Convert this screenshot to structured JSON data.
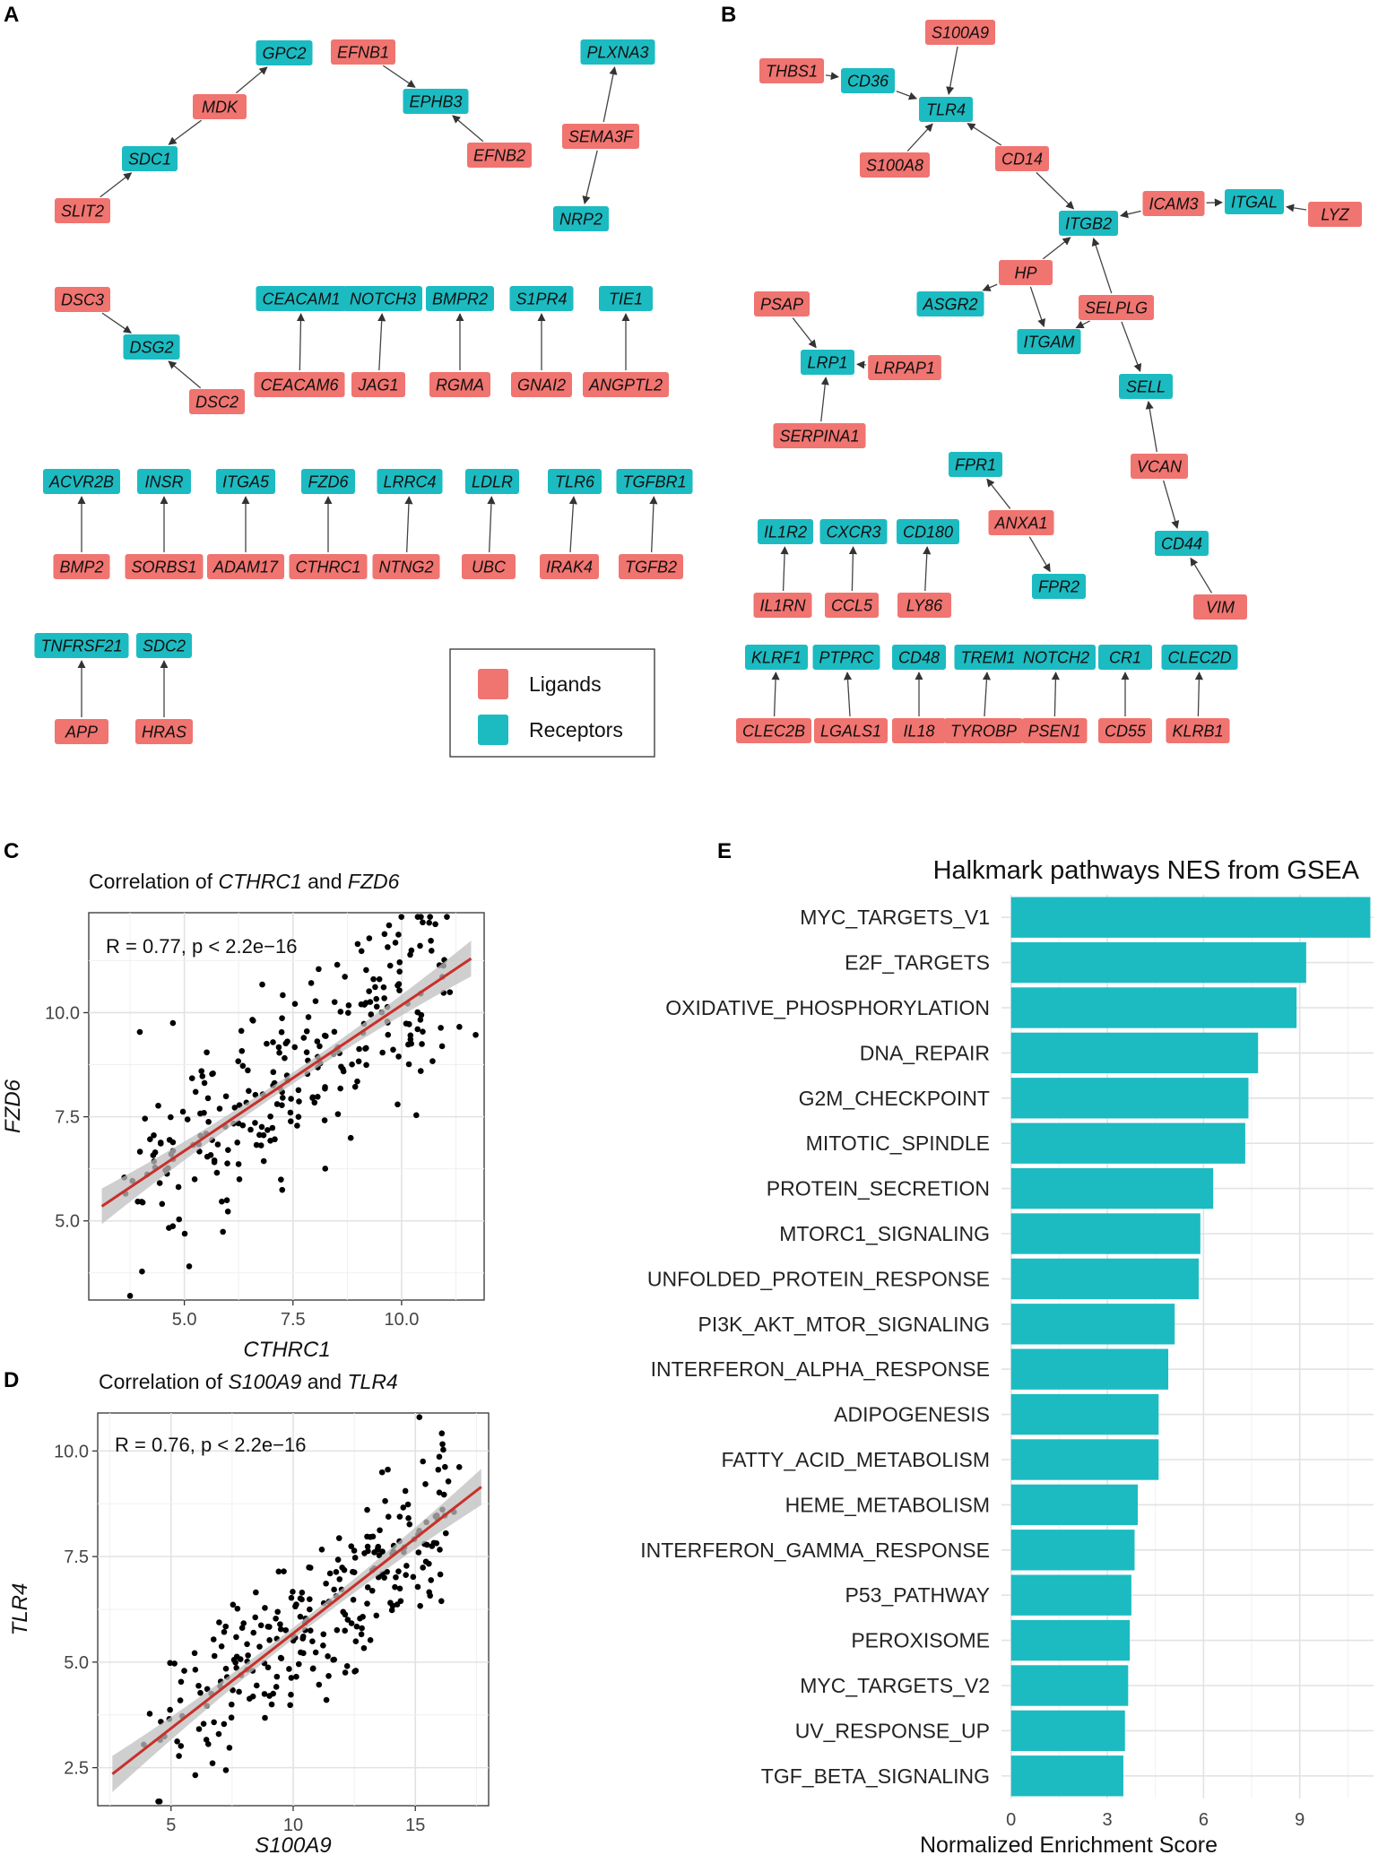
{
  "panels": {
    "A": "A",
    "B": "B",
    "C": "C",
    "D": "D",
    "E": "E"
  },
  "colors": {
    "ligand": "#F07470",
    "receptor": "#1CBBC1",
    "fit": "#C8302A",
    "ribbon": "#BFBFBF",
    "bar": "#1CBBC1"
  },
  "legend": {
    "ligands": "Ligands",
    "receptors": "Receptors"
  },
  "networkA": {
    "nodes": [
      {
        "id": "GPC2",
        "type": "rec"
      },
      {
        "id": "MDK",
        "type": "lig"
      },
      {
        "id": "SDC1",
        "type": "rec"
      },
      {
        "id": "SLIT2",
        "type": "lig"
      },
      {
        "id": "EFNB1",
        "type": "lig"
      },
      {
        "id": "EPHB3",
        "type": "rec"
      },
      {
        "id": "EFNB2",
        "type": "lig"
      },
      {
        "id": "PLXNA3",
        "type": "rec"
      },
      {
        "id": "SEMA3F",
        "type": "lig"
      },
      {
        "id": "NRP2",
        "type": "rec"
      },
      {
        "id": "DSC3",
        "type": "lig"
      },
      {
        "id": "DSG2",
        "type": "rec"
      },
      {
        "id": "DSC2",
        "type": "lig"
      },
      {
        "id": "CEACAM1",
        "type": "rec"
      },
      {
        "id": "CEACAM6",
        "type": "lig"
      },
      {
        "id": "NOTCH3",
        "type": "rec"
      },
      {
        "id": "JAG1",
        "type": "lig"
      },
      {
        "id": "BMPR2",
        "type": "rec"
      },
      {
        "id": "RGMA",
        "type": "lig"
      },
      {
        "id": "S1PR4",
        "type": "rec"
      },
      {
        "id": "GNAI2",
        "type": "lig"
      },
      {
        "id": "TIE1",
        "type": "rec"
      },
      {
        "id": "ANGPTL2",
        "type": "lig"
      },
      {
        "id": "ACVR2B",
        "type": "rec"
      },
      {
        "id": "BMP2",
        "type": "lig"
      },
      {
        "id": "INSR",
        "type": "rec"
      },
      {
        "id": "SORBS1",
        "type": "lig"
      },
      {
        "id": "ITGA5",
        "type": "rec"
      },
      {
        "id": "ADAM17",
        "type": "lig"
      },
      {
        "id": "FZD6",
        "type": "rec"
      },
      {
        "id": "CTHRC1",
        "type": "lig"
      },
      {
        "id": "LRRC4",
        "type": "rec"
      },
      {
        "id": "NTNG2",
        "type": "lig"
      },
      {
        "id": "LDLR",
        "type": "rec"
      },
      {
        "id": "UBC",
        "type": "lig"
      },
      {
        "id": "TLR6",
        "type": "rec"
      },
      {
        "id": "IRAK4",
        "type": "lig"
      },
      {
        "id": "TGFBR1",
        "type": "rec"
      },
      {
        "id": "TGFB2",
        "type": "lig"
      },
      {
        "id": "TNFRSF21",
        "type": "rec"
      },
      {
        "id": "APP",
        "type": "lig"
      },
      {
        "id": "SDC2",
        "type": "rec"
      },
      {
        "id": "HRAS",
        "type": "lig"
      }
    ],
    "edges": [
      [
        "MDK",
        "GPC2"
      ],
      [
        "MDK",
        "SDC1"
      ],
      [
        "SLIT2",
        "SDC1"
      ],
      [
        "EFNB1",
        "EPHB3"
      ],
      [
        "EFNB2",
        "EPHB3"
      ],
      [
        "SEMA3F",
        "PLXNA3"
      ],
      [
        "SEMA3F",
        "NRP2"
      ],
      [
        "DSC3",
        "DSG2"
      ],
      [
        "DSC2",
        "DSG2"
      ],
      [
        "CEACAM6",
        "CEACAM1"
      ],
      [
        "JAG1",
        "NOTCH3"
      ],
      [
        "RGMA",
        "BMPR2"
      ],
      [
        "GNAI2",
        "S1PR4"
      ],
      [
        "ANGPTL2",
        "TIE1"
      ],
      [
        "BMP2",
        "ACVR2B"
      ],
      [
        "SORBS1",
        "INSR"
      ],
      [
        "ADAM17",
        "ITGA5"
      ],
      [
        "CTHRC1",
        "FZD6"
      ],
      [
        "NTNG2",
        "LRRC4"
      ],
      [
        "UBC",
        "LDLR"
      ],
      [
        "IRAK4",
        "TLR6"
      ],
      [
        "TGFB2",
        "TGFBR1"
      ],
      [
        "APP",
        "TNFRSF21"
      ],
      [
        "HRAS",
        "SDC2"
      ]
    ]
  },
  "networkB": {
    "nodes": [
      {
        "id": "S100A9",
        "type": "lig"
      },
      {
        "id": "THBS1",
        "type": "lig"
      },
      {
        "id": "CD36",
        "type": "rec"
      },
      {
        "id": "TLR4",
        "type": "rec"
      },
      {
        "id": "S100A8",
        "type": "lig"
      },
      {
        "id": "CD14",
        "type": "lig"
      },
      {
        "id": "ITGB2",
        "type": "rec"
      },
      {
        "id": "ICAM3",
        "type": "lig"
      },
      {
        "id": "ITGAL",
        "type": "rec"
      },
      {
        "id": "LYZ",
        "type": "lig"
      },
      {
        "id": "HP",
        "type": "lig"
      },
      {
        "id": "ASGR2",
        "type": "rec"
      },
      {
        "id": "SELPLG",
        "type": "lig"
      },
      {
        "id": "ITGAM",
        "type": "rec"
      },
      {
        "id": "PSAP",
        "type": "lig"
      },
      {
        "id": "LRP1",
        "type": "rec"
      },
      {
        "id": "LRPAP1",
        "type": "lig"
      },
      {
        "id": "SERPINA1",
        "type": "lig"
      },
      {
        "id": "SELL",
        "type": "rec"
      },
      {
        "id": "VCAN",
        "type": "lig"
      },
      {
        "id": "FPR1",
        "type": "rec"
      },
      {
        "id": "ANXA1",
        "type": "lig"
      },
      {
        "id": "FPR2",
        "type": "rec"
      },
      {
        "id": "CD44",
        "type": "rec"
      },
      {
        "id": "VIM",
        "type": "lig"
      },
      {
        "id": "IL1R2",
        "type": "rec"
      },
      {
        "id": "IL1RN",
        "type": "lig"
      },
      {
        "id": "CXCR3",
        "type": "rec"
      },
      {
        "id": "CCL5",
        "type": "lig"
      },
      {
        "id": "CD180",
        "type": "rec"
      },
      {
        "id": "LY86",
        "type": "lig"
      },
      {
        "id": "KLRF1",
        "type": "rec"
      },
      {
        "id": "CLEC2B",
        "type": "lig"
      },
      {
        "id": "PTPRC",
        "type": "rec"
      },
      {
        "id": "LGALS1",
        "type": "lig"
      },
      {
        "id": "CD48",
        "type": "rec"
      },
      {
        "id": "IL18",
        "type": "lig"
      },
      {
        "id": "TREM1",
        "type": "rec"
      },
      {
        "id": "TYROBP",
        "type": "lig"
      },
      {
        "id": "NOTCH2",
        "type": "rec"
      },
      {
        "id": "PSEN1",
        "type": "lig"
      },
      {
        "id": "CR1",
        "type": "rec"
      },
      {
        "id": "CD55",
        "type": "lig"
      },
      {
        "id": "CLEC2D",
        "type": "rec"
      },
      {
        "id": "KLRB1",
        "type": "lig"
      }
    ],
    "edges": [
      [
        "S100A9",
        "TLR4"
      ],
      [
        "THBS1",
        "CD36"
      ],
      [
        "CD36",
        "TLR4"
      ],
      [
        "S100A8",
        "TLR4"
      ],
      [
        "CD14",
        "TLR4"
      ],
      [
        "CD14",
        "ITGB2"
      ],
      [
        "ICAM3",
        "ITGAL"
      ],
      [
        "ICAM3",
        "ITGB2"
      ],
      [
        "LYZ",
        "ITGAL"
      ],
      [
        "HP",
        "ITGB2"
      ],
      [
        "HP",
        "ASGR2"
      ],
      [
        "HP",
        "ITGAM"
      ],
      [
        "SELPLG",
        "ITGB2"
      ],
      [
        "SELPLG",
        "ITGAM"
      ],
      [
        "SELPLG",
        "SELL"
      ],
      [
        "PSAP",
        "LRP1"
      ],
      [
        "LRPAP1",
        "LRP1"
      ],
      [
        "SERPINA1",
        "LRP1"
      ],
      [
        "VCAN",
        "SELL"
      ],
      [
        "VCAN",
        "CD44"
      ],
      [
        "ANXA1",
        "FPR1"
      ],
      [
        "ANXA1",
        "FPR2"
      ],
      [
        "VIM",
        "CD44"
      ],
      [
        "IL1RN",
        "IL1R2"
      ],
      [
        "CCL5",
        "CXCR3"
      ],
      [
        "LY86",
        "CD180"
      ],
      [
        "CLEC2B",
        "KLRF1"
      ],
      [
        "LGALS1",
        "PTPRC"
      ],
      [
        "IL18",
        "CD48"
      ],
      [
        "TYROBP",
        "TREM1"
      ],
      [
        "PSEN1",
        "NOTCH2"
      ],
      [
        "CD55",
        "CR1"
      ],
      [
        "KLRB1",
        "CLEC2D"
      ]
    ]
  },
  "chart_data": [
    {
      "panel": "C",
      "type": "scatter",
      "title_prefix": "Correlation of ",
      "title_gene1": "CTHRC1",
      "title_mid": " and ",
      "title_gene2": "FZD6",
      "annotation": "R = 0.77, p < 2.2e−16",
      "xlabel": "CTHRC1",
      "ylabel": "FZD6",
      "xlim": [
        2.8,
        11.9
      ],
      "ylim": [
        3.1,
        12.4
      ],
      "xticks": [
        5.0,
        7.5,
        10.0
      ],
      "yticks": [
        5.0,
        7.5,
        10.0
      ],
      "tick_labels_x": [
        "5.0",
        "7.5",
        "10.0"
      ],
      "tick_labels_y": [
        "5.0",
        "7.5",
        "10.0"
      ],
      "fit": {
        "x": [
          3.1,
          11.6
        ],
        "y": [
          5.35,
          11.3
        ]
      },
      "points": {
        "n": 270,
        "slope": 0.7,
        "intercept": 3.2,
        "noise": 1.15,
        "xmin": 3.1,
        "xmax": 11.6,
        "seed": 7
      }
    },
    {
      "panel": "D",
      "type": "scatter",
      "title_prefix": "Correlation of ",
      "title_gene1": "S100A9",
      "title_mid": " and ",
      "title_gene2": "TLR4",
      "annotation": "R = 0.76, p < 2.2e−16",
      "xlabel": "S100A9",
      "ylabel": "TLR4",
      "xlim": [
        2.0,
        18.0
      ],
      "ylim": [
        1.6,
        10.9
      ],
      "xticks": [
        5,
        10,
        15
      ],
      "yticks": [
        2.5,
        5.0,
        7.5,
        10.0
      ],
      "tick_labels_x": [
        "5",
        "10",
        "15"
      ],
      "tick_labels_y": [
        "2.5",
        "5.0",
        "7.5",
        "10.0"
      ],
      "fit": {
        "x": [
          2.6,
          17.7
        ],
        "y": [
          2.35,
          9.15
        ]
      },
      "points": {
        "n": 270,
        "slope": 0.45,
        "intercept": 1.2,
        "noise": 0.95,
        "xmin": 2.6,
        "xmax": 17.7,
        "seed": 13
      }
    },
    {
      "panel": "E",
      "type": "bar",
      "orientation": "horizontal",
      "title": "Halkmark pathways NES from GSEA",
      "xlabel": "Normalized Enrichment Score",
      "xlim": [
        -0.3,
        11.3
      ],
      "xticks": [
        0,
        3,
        6,
        9
      ],
      "tick_labels_x": [
        "0",
        "3",
        "6",
        "9"
      ],
      "categories": [
        "MYC_TARGETS_V1",
        "E2F_TARGETS",
        "OXIDATIVE_PHOSPHORYLATION",
        "DNA_REPAIR",
        "G2M_CHECKPOINT",
        "MITOTIC_SPINDLE",
        "PROTEIN_SECRETION",
        "MTORC1_SIGNALING",
        "UNFOLDED_PROTEIN_RESPONSE",
        "PI3K_AKT_MTOR_SIGNALING",
        "INTERFERON_ALPHA_RESPONSE",
        "ADIPOGENESIS",
        "FATTY_ACID_METABOLISM",
        "HEME_METABOLISM",
        "INTERFERON_GAMMA_RESPONSE",
        "P53_PATHWAY",
        "PEROXISOME",
        "MYC_TARGETS_V2",
        "UV_RESPONSE_UP",
        "TGF_BETA_SIGNALING"
      ],
      "values": [
        11.2,
        9.2,
        8.9,
        7.7,
        7.4,
        7.3,
        6.3,
        5.9,
        5.85,
        5.1,
        4.9,
        4.6,
        4.6,
        3.95,
        3.85,
        3.75,
        3.7,
        3.65,
        3.55,
        3.5
      ]
    }
  ]
}
